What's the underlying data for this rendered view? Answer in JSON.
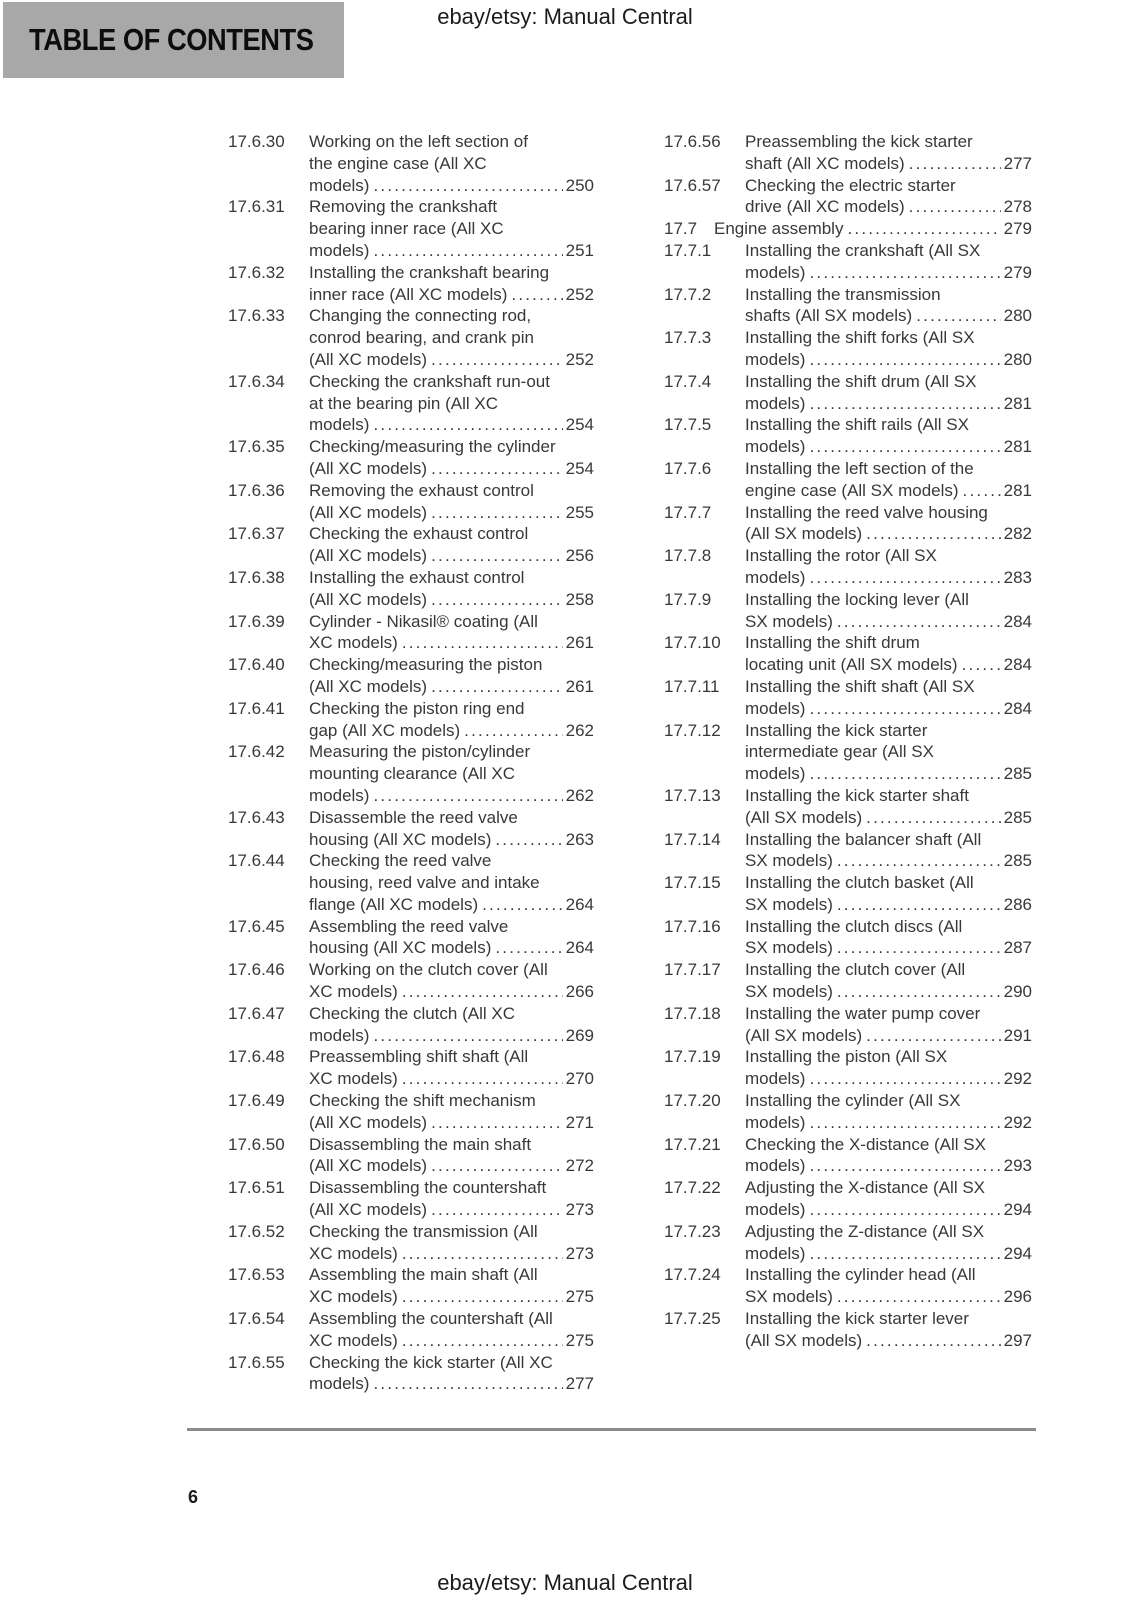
{
  "header": {
    "title": "ebay/etsy: Manual Central"
  },
  "toc_heading": "TABLE OF CONTENTS",
  "toc": {
    "left_column": [
      {
        "num": "17.6.30",
        "lines": [
          "Working on the left section of",
          "the engine case (All XC",
          "models)"
        ],
        "page": "250"
      },
      {
        "num": "17.6.31",
        "lines": [
          "Removing the crankshaft",
          "bearing inner race (All XC",
          "models)"
        ],
        "page": "251"
      },
      {
        "num": "17.6.32",
        "lines": [
          "Installing the crankshaft bearing",
          "inner race (All XC models)"
        ],
        "page": "252"
      },
      {
        "num": "17.6.33",
        "lines": [
          "Changing the connecting rod,",
          "conrod bearing, and crank pin",
          "(All XC models)"
        ],
        "page": "252"
      },
      {
        "num": "17.6.34",
        "lines": [
          "Checking the crankshaft run-out",
          "at the bearing pin (All XC",
          "models)"
        ],
        "page": "254"
      },
      {
        "num": "17.6.35",
        "lines": [
          "Checking/measuring the cylinder",
          "(All XC models)"
        ],
        "page": "254"
      },
      {
        "num": "17.6.36",
        "lines": [
          "Removing the exhaust control",
          "(All XC models)"
        ],
        "page": "255"
      },
      {
        "num": "17.6.37",
        "lines": [
          "Checking the exhaust control",
          "(All XC models)"
        ],
        "page": "256"
      },
      {
        "num": "17.6.38",
        "lines": [
          "Installing the exhaust control",
          "(All XC models)"
        ],
        "page": "258"
      },
      {
        "num": "17.6.39",
        "lines": [
          "Cylinder - Nikasil® coating (All",
          "XC models)"
        ],
        "page": "261"
      },
      {
        "num": "17.6.40",
        "lines": [
          "Checking/measuring the piston",
          "(All XC models)"
        ],
        "page": "261"
      },
      {
        "num": "17.6.41",
        "lines": [
          "Checking the piston ring end",
          "gap (All XC models)"
        ],
        "page": "262"
      },
      {
        "num": "17.6.42",
        "lines": [
          "Measuring the piston/cylinder",
          "mounting clearance (All XC",
          "models)"
        ],
        "page": "262"
      },
      {
        "num": "17.6.43",
        "lines": [
          "Disassemble the reed valve",
          "housing (All XC models)"
        ],
        "page": "263"
      },
      {
        "num": "17.6.44",
        "lines": [
          "Checking the reed valve",
          "housing, reed valve and intake",
          "flange (All XC models)"
        ],
        "page": "264"
      },
      {
        "num": "17.6.45",
        "lines": [
          "Assembling the reed valve",
          "housing (All XC models)"
        ],
        "page": "264"
      },
      {
        "num": "17.6.46",
        "lines": [
          "Working on the clutch cover (All",
          "XC models)"
        ],
        "page": "266"
      },
      {
        "num": "17.6.47",
        "lines": [
          "Checking the clutch (All XC",
          "models)"
        ],
        "page": "269"
      },
      {
        "num": "17.6.48",
        "lines": [
          "Preassembling shift shaft (All",
          "XC models)"
        ],
        "page": "270"
      },
      {
        "num": "17.6.49",
        "lines": [
          "Checking the shift mechanism",
          "(All XC models)"
        ],
        "page": "271"
      },
      {
        "num": "17.6.50",
        "lines": [
          "Disassembling the main shaft",
          "(All XC models)"
        ],
        "page": "272"
      },
      {
        "num": "17.6.51",
        "lines": [
          "Disassembling the countershaft",
          "(All XC models)"
        ],
        "page": "273"
      },
      {
        "num": "17.6.52",
        "lines": [
          "Checking the transmission (All",
          "XC models)"
        ],
        "page": "273"
      },
      {
        "num": "17.6.53",
        "lines": [
          "Assembling the main shaft (All",
          "XC models)"
        ],
        "page": "275"
      },
      {
        "num": "17.6.54",
        "lines": [
          "Assembling the countershaft (All",
          "XC models)"
        ],
        "page": "275"
      },
      {
        "num": "17.6.55",
        "lines": [
          "Checking the kick starter (All XC",
          "models)"
        ],
        "page": "277"
      }
    ],
    "right_column": [
      {
        "num": "17.6.56",
        "lines": [
          "Preassembling the kick starter",
          "shaft (All XC models)"
        ],
        "page": "277"
      },
      {
        "num": "17.6.57",
        "lines": [
          "Checking the electric starter",
          "drive (All XC models)"
        ],
        "page": "278"
      },
      {
        "num": "17.7",
        "level": "section",
        "lines": [
          "Engine assembly"
        ],
        "page": "279"
      },
      {
        "num": "17.7.1",
        "lines": [
          "Installing the crankshaft (All SX",
          "models)"
        ],
        "page": "279"
      },
      {
        "num": "17.7.2",
        "lines": [
          "Installing the transmission",
          "shafts (All SX models)"
        ],
        "page": "280"
      },
      {
        "num": "17.7.3",
        "lines": [
          "Installing the shift forks (All SX",
          "models)"
        ],
        "page": "280"
      },
      {
        "num": "17.7.4",
        "lines": [
          "Installing the shift drum (All SX",
          "models)"
        ],
        "page": "281"
      },
      {
        "num": "17.7.5",
        "lines": [
          "Installing the shift rails (All SX",
          "models)"
        ],
        "page": "281"
      },
      {
        "num": "17.7.6",
        "lines": [
          "Installing the left section of the",
          "engine case (All SX models)"
        ],
        "page": "281"
      },
      {
        "num": "17.7.7",
        "lines": [
          "Installing the reed valve housing",
          "(All SX models)"
        ],
        "page": "282"
      },
      {
        "num": "17.7.8",
        "lines": [
          "Installing the rotor (All SX",
          "models)"
        ],
        "page": "283"
      },
      {
        "num": "17.7.9",
        "lines": [
          "Installing the locking lever (All",
          "SX models)"
        ],
        "page": "284"
      },
      {
        "num": "17.7.10",
        "lines": [
          "Installing the shift drum",
          "locating unit (All SX models)"
        ],
        "page": "284"
      },
      {
        "num": "17.7.11",
        "lines": [
          "Installing the shift shaft (All SX",
          "models)"
        ],
        "page": "284"
      },
      {
        "num": "17.7.12",
        "lines": [
          "Installing the kick starter",
          "intermediate gear (All SX",
          "models)"
        ],
        "page": "285"
      },
      {
        "num": "17.7.13",
        "lines": [
          "Installing the kick starter shaft",
          "(All SX models)"
        ],
        "page": "285"
      },
      {
        "num": "17.7.14",
        "lines": [
          "Installing the balancer shaft (All",
          "SX models)"
        ],
        "page": "285"
      },
      {
        "num": "17.7.15",
        "lines": [
          "Installing the clutch basket (All",
          "SX models)"
        ],
        "page": "286"
      },
      {
        "num": "17.7.16",
        "lines": [
          "Installing the clutch discs (All",
          "SX models)"
        ],
        "page": "287"
      },
      {
        "num": "17.7.17",
        "lines": [
          "Installing the clutch cover (All",
          "SX models)"
        ],
        "page": "290"
      },
      {
        "num": "17.7.18",
        "lines": [
          "Installing the water pump cover",
          "(All SX models)"
        ],
        "page": "291"
      },
      {
        "num": "17.7.19",
        "lines": [
          "Installing the piston (All SX",
          "models)"
        ],
        "page": "292"
      },
      {
        "num": "17.7.20",
        "lines": [
          "Installing the cylinder (All SX",
          "models)"
        ],
        "page": "292"
      },
      {
        "num": "17.7.21",
        "lines": [
          "Checking the X-distance (All SX",
          "models)"
        ],
        "page": "293"
      },
      {
        "num": "17.7.22",
        "lines": [
          "Adjusting the X-distance (All SX",
          "models)"
        ],
        "page": "294"
      },
      {
        "num": "17.7.23",
        "lines": [
          "Adjusting the Z-distance (All SX",
          "models)"
        ],
        "page": "294"
      },
      {
        "num": "17.7.24",
        "lines": [
          "Installing the cylinder head (All",
          "SX models)"
        ],
        "page": "296"
      },
      {
        "num": "17.7.25",
        "lines": [
          "Installing the kick starter lever",
          "(All SX models)"
        ],
        "page": "297"
      }
    ]
  },
  "footer": {
    "page_number": "6",
    "title": "ebay/etsy: Manual Central"
  }
}
